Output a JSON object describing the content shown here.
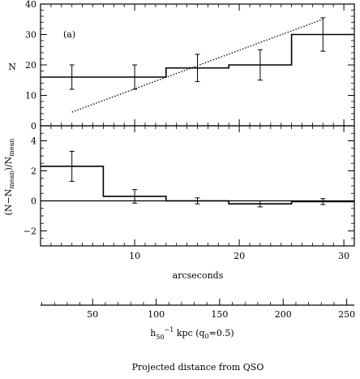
{
  "chart_data": [
    {
      "type": "step",
      "panel_label": "(a)",
      "ylabel": "N",
      "xlim": [
        1,
        31
      ],
      "ylim": [
        0,
        40
      ],
      "x_ticks": [
        10,
        20,
        30
      ],
      "y_ticks": [
        0,
        10,
        20,
        30,
        40
      ],
      "y_tick_labels": [
        "0",
        "10",
        "20",
        "30",
        "40"
      ],
      "bins": [
        {
          "x_start": 1,
          "x_end": 13,
          "value": 16
        },
        {
          "x_start": 13,
          "x_end": 19,
          "value": 19
        },
        {
          "x_start": 19,
          "x_end": 25,
          "value": 20
        },
        {
          "x_start": 25,
          "x_end": 31,
          "value": 30
        }
      ],
      "points": [
        {
          "x": 4,
          "y": 16,
          "yerr": 4
        },
        {
          "x": 10,
          "y": 16,
          "yerr": 4
        },
        {
          "x": 16,
          "y": 19,
          "yerr": 4.5
        },
        {
          "x": 22,
          "y": 20,
          "yerr": 5
        },
        {
          "x": 28,
          "y": 30,
          "yerr": 5.5
        }
      ],
      "trend_line": {
        "x": [
          4,
          28
        ],
        "y": [
          4.5,
          35
        ],
        "style": "dotted"
      }
    },
    {
      "type": "step",
      "ylabel": "(N−Nmean)/Nmean",
      "xlim": [
        1,
        31
      ],
      "ylim": [
        -3,
        5
      ],
      "x_ticks": [
        10,
        20,
        30
      ],
      "y_ticks": [
        -2,
        0,
        2,
        4
      ],
      "y_tick_labels": [
        "−2",
        "0",
        "2",
        "4"
      ],
      "zero_line": true,
      "bins": [
        {
          "x_start": 1,
          "x_end": 7,
          "value": 2.3
        },
        {
          "x_start": 7,
          "x_end": 13,
          "value": 0.3
        },
        {
          "x_start": 13,
          "x_end": 19,
          "value": 0
        },
        {
          "x_start": 19,
          "x_end": 25,
          "value": -0.2
        },
        {
          "x_start": 25,
          "x_end": 31,
          "value": -0.05
        }
      ],
      "points": [
        {
          "x": 4,
          "y": 2.3,
          "yerr": 1
        },
        {
          "x": 10,
          "y": 0.3,
          "yerr": 0.45
        },
        {
          "x": 16,
          "y": 0,
          "yerr": 0.2
        },
        {
          "x": 22,
          "y": -0.2,
          "yerr": 0.2
        },
        {
          "x": 28,
          "y": -0.05,
          "yerr": 0.2
        }
      ],
      "xlabel": "arcseconds"
    }
  ],
  "secondary_axis": {
    "range": [
      9,
      256
    ],
    "ticks": [
      50,
      100,
      150,
      200,
      250
    ],
    "label": "h50⁻¹ kpc (q0=0.5)",
    "label_main": "h",
    "label_sub": "50",
    "label_sup": "−1",
    "label_rest": " kpc (q",
    "label_rest_sub": "0",
    "label_rest_end": "=0.5)"
  },
  "caption": "Projected distance from QSO"
}
